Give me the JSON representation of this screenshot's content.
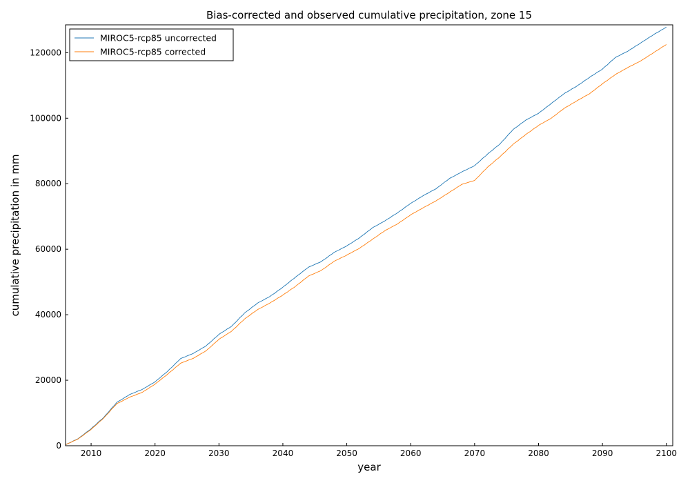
{
  "chart_data": {
    "type": "line",
    "title": "Bias-corrected and observed cumulative precipitation, zone 15",
    "xlabel": "year",
    "ylabel": "cumulative precipitation in mm",
    "xlim": [
      2006,
      2101
    ],
    "ylim": [
      0,
      128500
    ],
    "xticks": [
      2010,
      2020,
      2030,
      2040,
      2050,
      2060,
      2070,
      2080,
      2090,
      2100
    ],
    "yticks": [
      0,
      20000,
      40000,
      60000,
      80000,
      100000,
      120000
    ],
    "grid": false,
    "legend_position": "top-left",
    "x": [
      2006,
      2008,
      2010,
      2012,
      2014,
      2016,
      2018,
      2020,
      2022,
      2024,
      2026,
      2028,
      2030,
      2032,
      2034,
      2036,
      2038,
      2040,
      2042,
      2044,
      2046,
      2048,
      2050,
      2052,
      2054,
      2056,
      2058,
      2060,
      2062,
      2064,
      2066,
      2068,
      2070,
      2072,
      2074,
      2076,
      2078,
      2080,
      2082,
      2084,
      2086,
      2088,
      2090,
      2092,
      2094,
      2096,
      2098,
      2100
    ],
    "series": [
      {
        "name": "MIROC5-rcp85 uncorrected",
        "color": "#1f77b4",
        "values": [
          300,
          2200,
          5200,
          8700,
          13200,
          15600,
          17200,
          19500,
          22800,
          26600,
          28200,
          30500,
          34000,
          36500,
          40500,
          43500,
          45600,
          48400,
          51500,
          54500,
          56200,
          59000,
          61000,
          63500,
          66500,
          68700,
          71200,
          74000,
          76400,
          78500,
          81500,
          83600,
          85500,
          89000,
          92200,
          96500,
          99400,
          101500,
          104500,
          107500,
          109800,
          112500,
          115000,
          118500,
          120500,
          123000,
          125500,
          127800
        ]
      },
      {
        "name": "MIROC5-rcp85 corrected",
        "color": "#ff7f0e",
        "values": [
          300,
          2100,
          5000,
          8500,
          12800,
          14800,
          16300,
          18800,
          21900,
          25200,
          26700,
          29000,
          32500,
          35000,
          38700,
          41500,
          43600,
          46000,
          48700,
          51800,
          53500,
          56300,
          58200,
          60300,
          63000,
          65700,
          67800,
          70500,
          72700,
          74800,
          77300,
          79800,
          81000,
          85000,
          88300,
          92000,
          95000,
          97800,
          100000,
          103000,
          105300,
          107500,
          110500,
          113300,
          115500,
          117500,
          120000,
          122500
        ]
      }
    ]
  }
}
